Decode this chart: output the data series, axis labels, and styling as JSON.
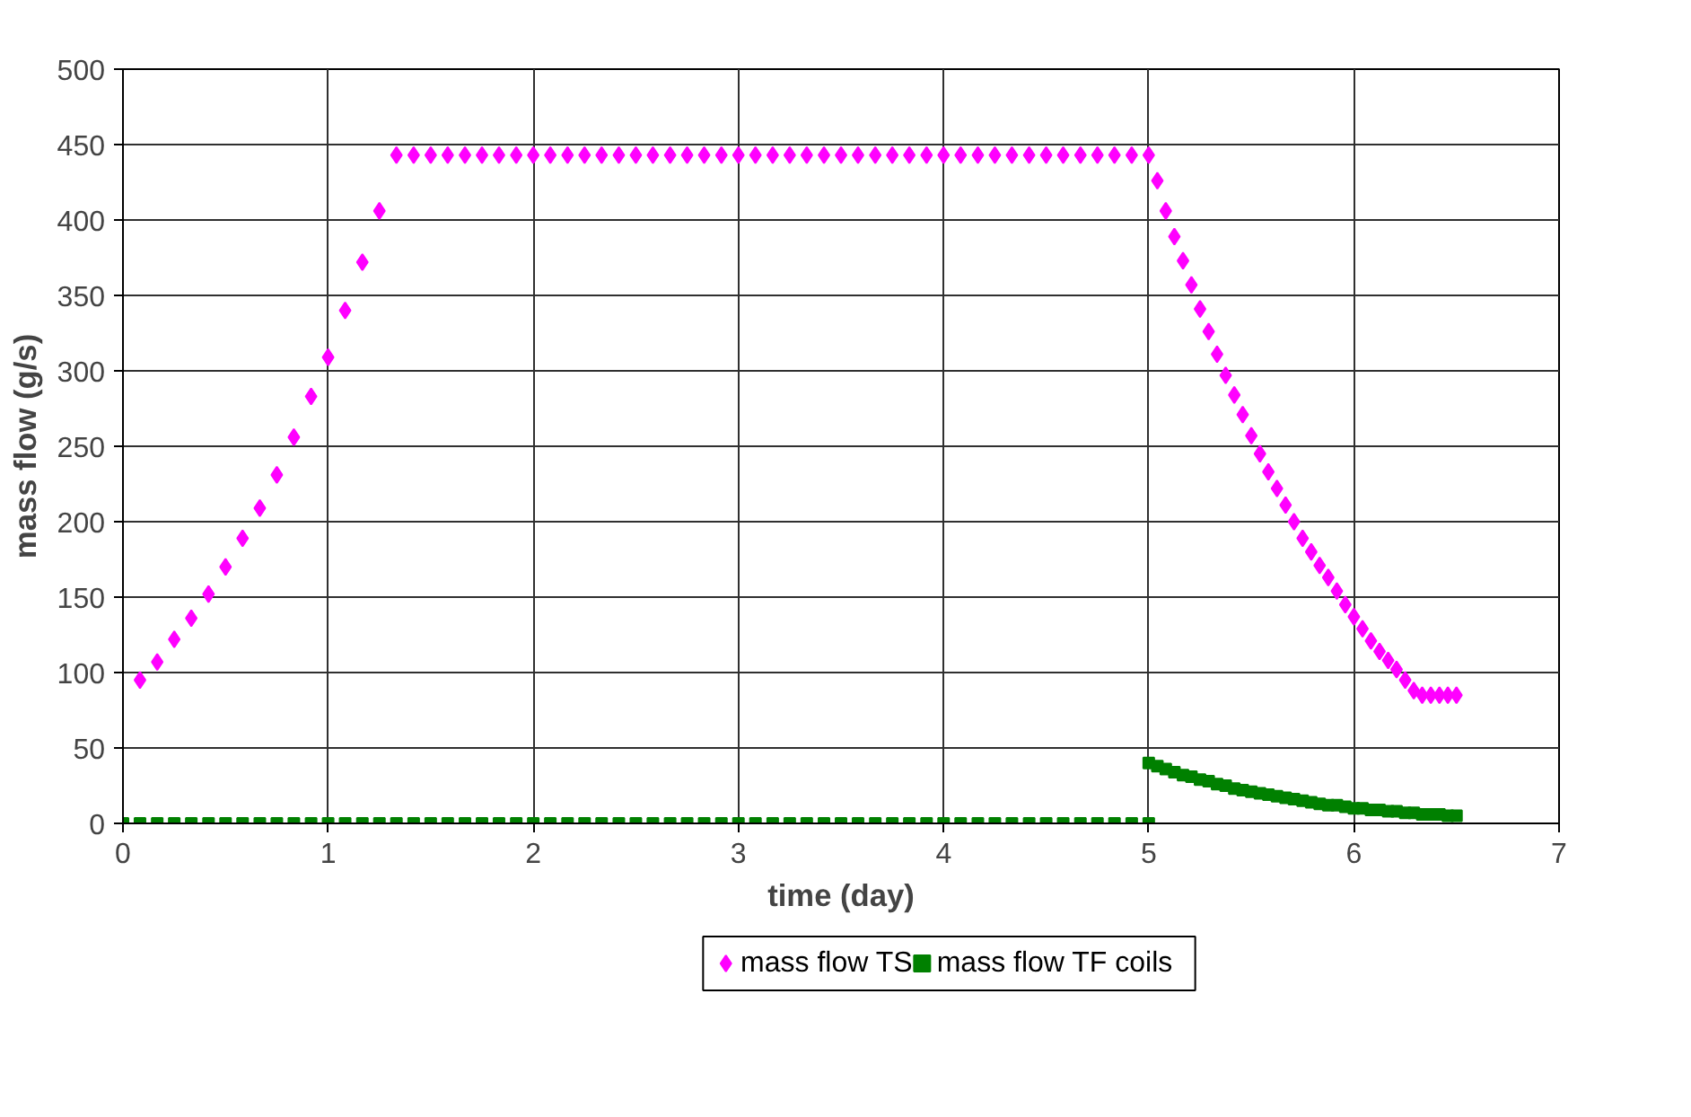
{
  "chart_data": {
    "type": "scatter",
    "xlabel": "time (day)",
    "ylabel": "mass flow (g/s)",
    "xlim": [
      0,
      7
    ],
    "ylim": [
      0,
      500
    ],
    "xticks": [
      0,
      1,
      2,
      3,
      4,
      5,
      6,
      7
    ],
    "yticks": [
      0,
      50,
      100,
      150,
      200,
      250,
      300,
      350,
      400,
      450,
      500
    ],
    "grid": true,
    "legend": "bottom",
    "series": [
      {
        "name": "mass flow TS",
        "color": "#ff00ff",
        "marker": "diamond",
        "x": [
          0.083,
          0.167,
          0.25,
          0.333,
          0.417,
          0.5,
          0.583,
          0.667,
          0.75,
          0.833,
          0.917,
          1.0,
          1.083,
          1.167,
          1.25,
          1.333,
          1.417,
          1.5,
          1.583,
          1.667,
          1.75,
          1.833,
          1.917,
          2.0,
          2.083,
          2.167,
          2.25,
          2.333,
          2.417,
          2.5,
          2.583,
          2.667,
          2.75,
          2.833,
          2.917,
          3.0,
          3.083,
          3.167,
          3.25,
          3.333,
          3.417,
          3.5,
          3.583,
          3.667,
          3.75,
          3.833,
          3.917,
          4.0,
          4.083,
          4.167,
          4.25,
          4.333,
          4.417,
          4.5,
          4.583,
          4.667,
          4.75,
          4.833,
          4.917,
          5.0,
          5.042,
          5.083,
          5.125,
          5.167,
          5.208,
          5.25,
          5.292,
          5.333,
          5.375,
          5.417,
          5.458,
          5.5,
          5.542,
          5.583,
          5.625,
          5.667,
          5.708,
          5.75,
          5.792,
          5.833,
          5.875,
          5.917,
          5.958,
          6.0,
          6.042,
          6.083,
          6.125,
          6.167,
          6.208,
          6.25,
          6.292,
          6.333,
          6.375,
          6.417,
          6.458,
          6.5
        ],
        "values": [
          95,
          107,
          122,
          136,
          152,
          170,
          189,
          209,
          231,
          256,
          283,
          309,
          340,
          372,
          406,
          443,
          443,
          443,
          443,
          443,
          443,
          443,
          443,
          443,
          443,
          443,
          443,
          443,
          443,
          443,
          443,
          443,
          443,
          443,
          443,
          443,
          443,
          443,
          443,
          443,
          443,
          443,
          443,
          443,
          443,
          443,
          443,
          443,
          443,
          443,
          443,
          443,
          443,
          443,
          443,
          443,
          443,
          443,
          443,
          443,
          426,
          406,
          389,
          373,
          357,
          341,
          326,
          311,
          297,
          284,
          271,
          257,
          245,
          233,
          222,
          211,
          200,
          189,
          180,
          171,
          163,
          154,
          145,
          137,
          129,
          121,
          114,
          108,
          102,
          95,
          88,
          85,
          85,
          85,
          85,
          85
        ]
      },
      {
        "name": "mass flow TF coils",
        "color": "#008000",
        "marker": "square",
        "x": [
          0,
          0.083,
          0.167,
          0.25,
          0.333,
          0.417,
          0.5,
          0.583,
          0.667,
          0.75,
          0.833,
          0.917,
          1.0,
          1.083,
          1.167,
          1.25,
          1.333,
          1.417,
          1.5,
          1.583,
          1.667,
          1.75,
          1.833,
          1.917,
          2.0,
          2.083,
          2.167,
          2.25,
          2.333,
          2.417,
          2.5,
          2.583,
          2.667,
          2.75,
          2.833,
          2.917,
          3.0,
          3.083,
          3.167,
          3.25,
          3.333,
          3.417,
          3.5,
          3.583,
          3.667,
          3.75,
          3.833,
          3.917,
          4.0,
          4.083,
          4.167,
          4.25,
          4.333,
          4.417,
          4.5,
          4.583,
          4.667,
          4.75,
          4.833,
          4.917,
          5.0,
          5.0,
          5.042,
          5.083,
          5.125,
          5.167,
          5.208,
          5.25,
          5.292,
          5.333,
          5.375,
          5.417,
          5.458,
          5.5,
          5.542,
          5.583,
          5.625,
          5.667,
          5.708,
          5.75,
          5.792,
          5.833,
          5.875,
          5.917,
          5.958,
          6.0,
          6.042,
          6.083,
          6.125,
          6.167,
          6.208,
          6.25,
          6.292,
          6.333,
          6.375,
          6.417,
          6.458,
          6.5
        ],
        "values": [
          0,
          0,
          0,
          0,
          0,
          0,
          0,
          0,
          0,
          0,
          0,
          0,
          0,
          0,
          0,
          0,
          0,
          0,
          0,
          0,
          0,
          0,
          0,
          0,
          0,
          0,
          0,
          0,
          0,
          0,
          0,
          0,
          0,
          0,
          0,
          0,
          0,
          0,
          0,
          0,
          0,
          0,
          0,
          0,
          0,
          0,
          0,
          0,
          0,
          0,
          0,
          0,
          0,
          0,
          0,
          0,
          0,
          0,
          0,
          0,
          0,
          40,
          38,
          36,
          34,
          32,
          31,
          29,
          28,
          26,
          25,
          23,
          22,
          21,
          20,
          19,
          18,
          17,
          16,
          15,
          14,
          13,
          12,
          12,
          11,
          10,
          10,
          9,
          9,
          8,
          8,
          7,
          7,
          6,
          6,
          6,
          5,
          5
        ]
      }
    ]
  }
}
